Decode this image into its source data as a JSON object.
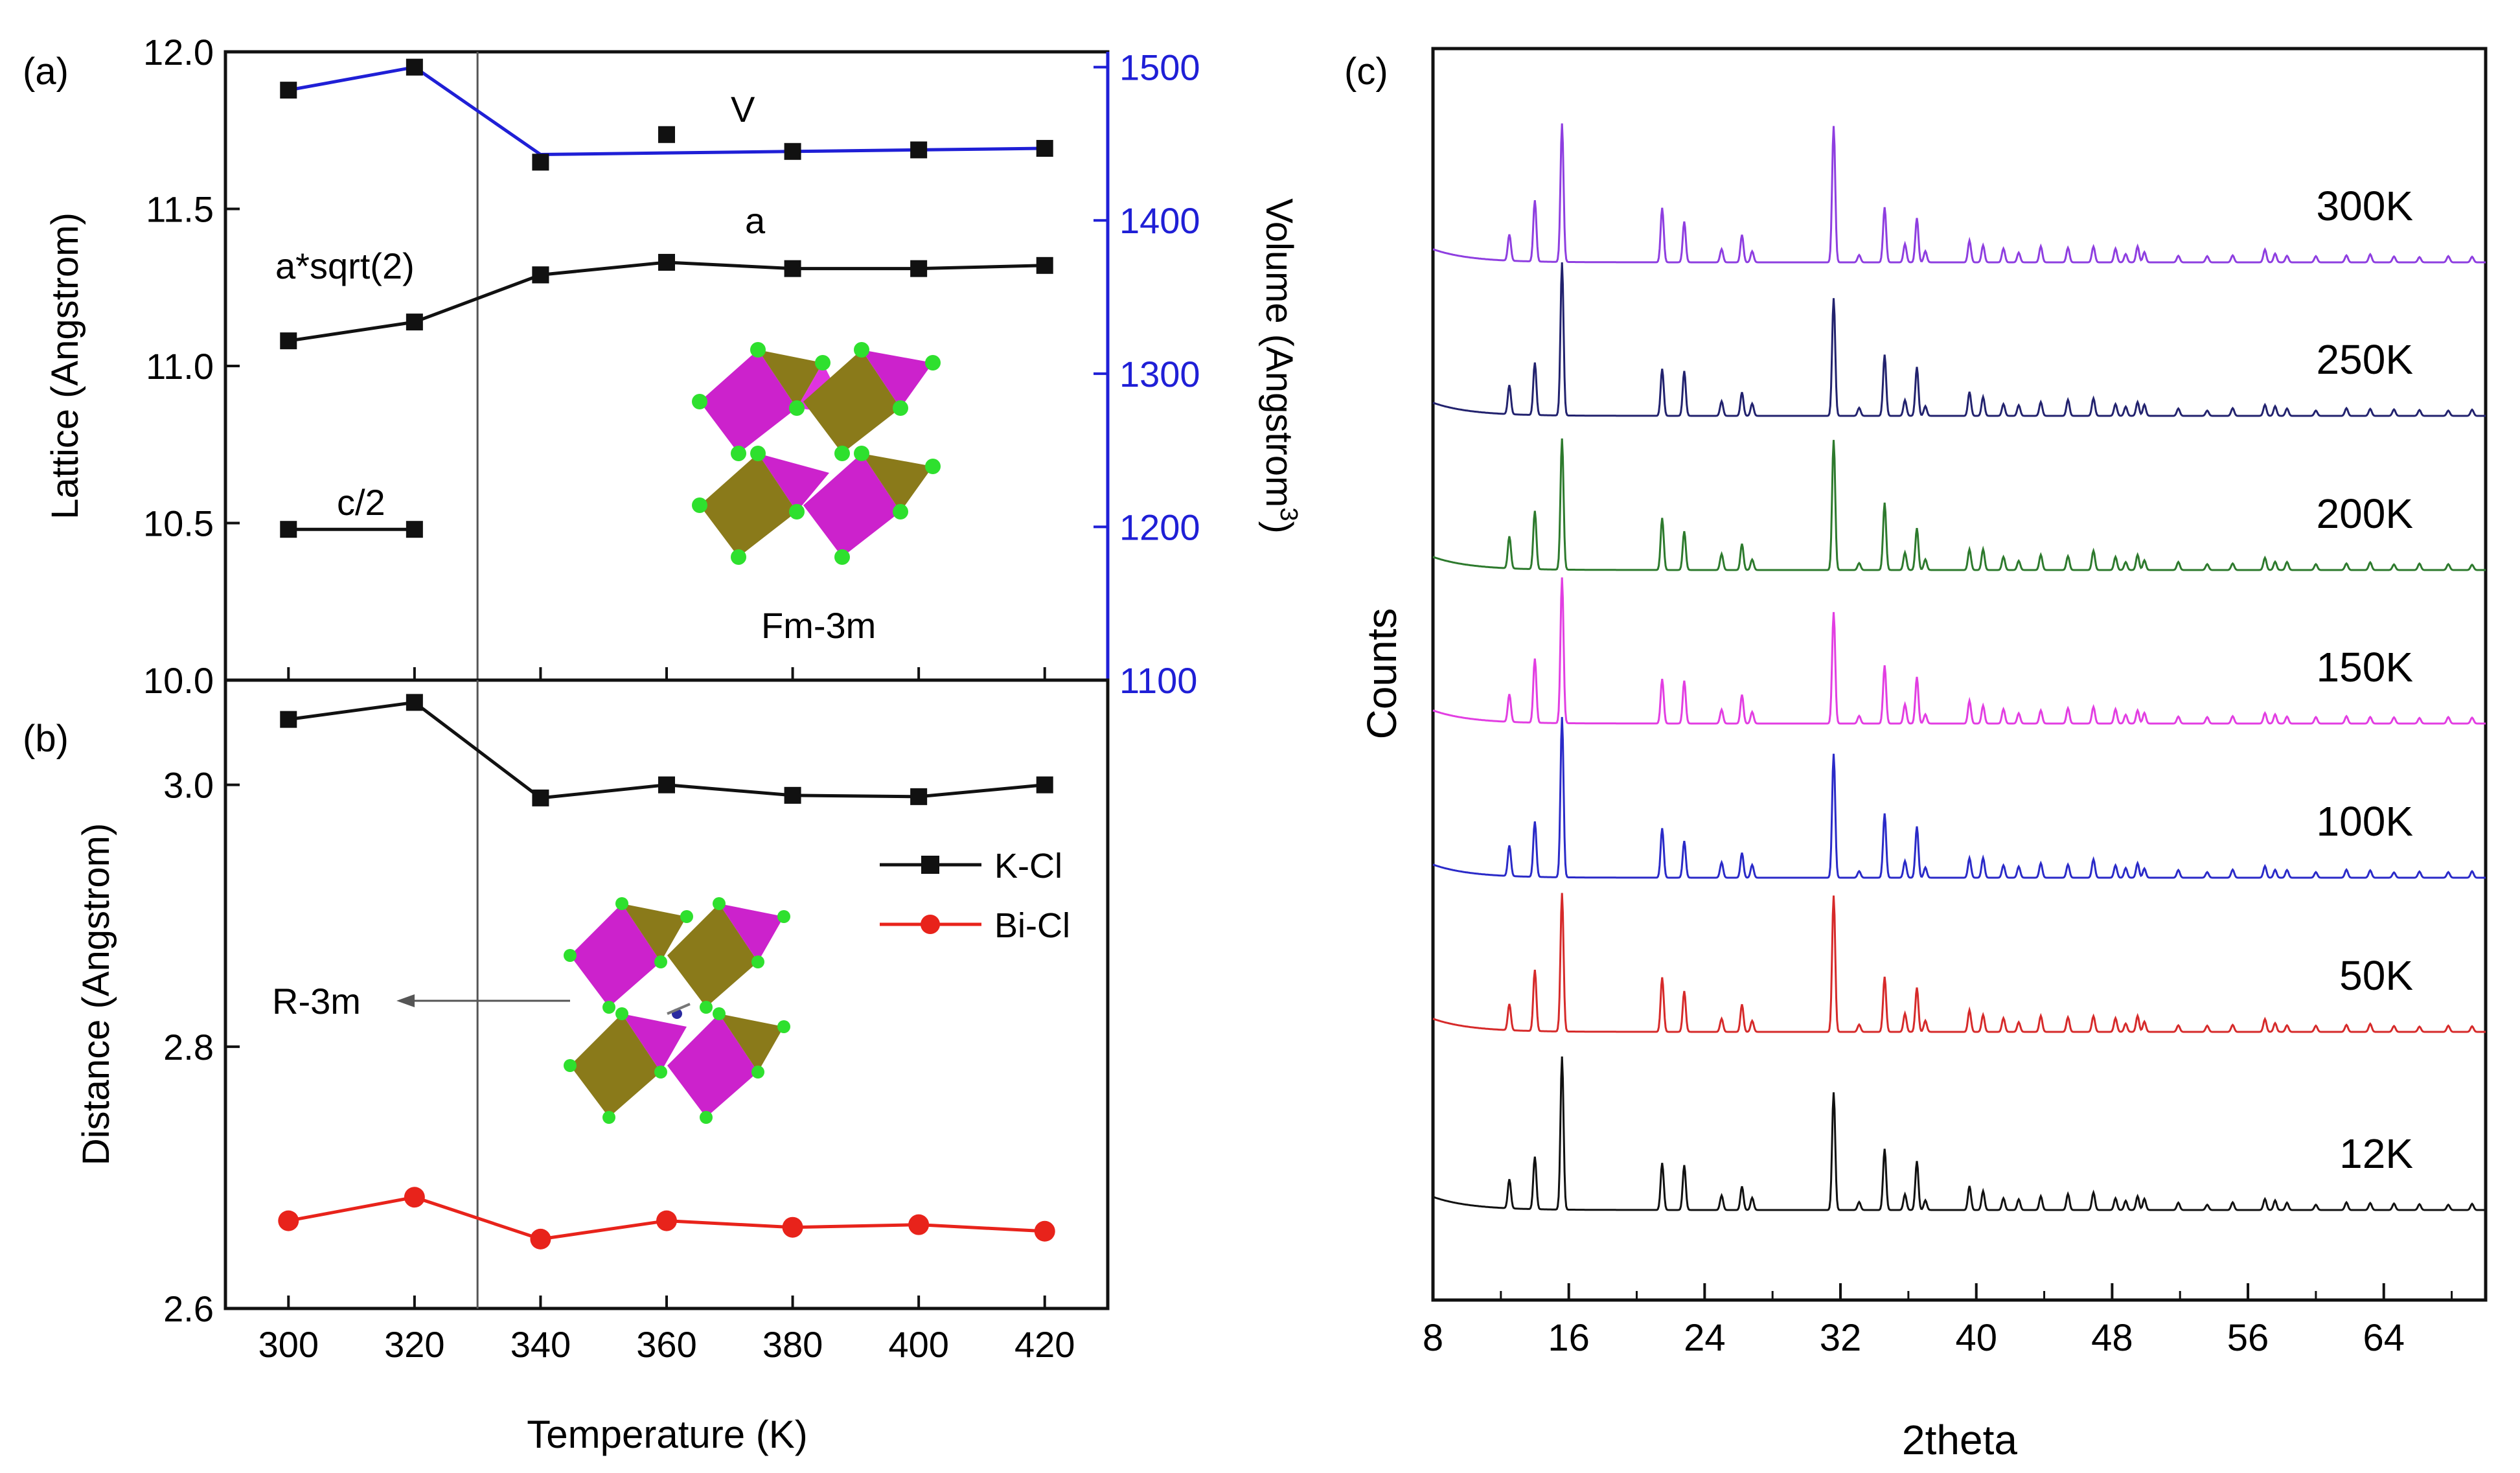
{
  "chart_data": [
    {
      "panel": "(a)",
      "type": "line",
      "xlabel": "",
      "ylabel": "Lattice (Angstrom)",
      "y2label": "Volume (Angstrom",
      "y2label_sup": "3",
      "y2label_end": ")",
      "xlim": [
        290,
        430
      ],
      "ylim": [
        10.0,
        12.0
      ],
      "y2lim": [
        1100,
        1510
      ],
      "x_ticks": [
        300,
        320,
        340,
        360,
        380,
        400,
        420
      ],
      "y_ticks": [
        "10.0",
        "10.5",
        "11.0",
        "11.5",
        "12.0"
      ],
      "y2_ticks": [
        "1100",
        "1200",
        "1300",
        "1400",
        "1500"
      ],
      "y2_color": "#1f1fd6",
      "transition_line_x": 330,
      "series": [
        {
          "name": "a*sqrt(2)",
          "axis": "left",
          "color": "#111111",
          "marker": "square",
          "x": [
            300,
            320,
            340
          ],
          "y": [
            11.08,
            11.14,
            11.29
          ],
          "connect": true
        },
        {
          "name": "a",
          "axis": "left",
          "color": "#111111",
          "marker": "square",
          "x": [
            340,
            360,
            380,
            400,
            420
          ],
          "y": [
            11.29,
            11.33,
            11.31,
            11.31,
            11.32
          ],
          "connect": true
        },
        {
          "name": "c/2",
          "axis": "left",
          "color": "#111111",
          "marker": "square",
          "x": [
            300,
            320
          ],
          "y": [
            10.48,
            10.48
          ],
          "connect": true
        },
        {
          "name": "V",
          "axis": "right",
          "color": "#1f1fd6",
          "marker": "square",
          "x": [
            300,
            320,
            340,
            360,
            380,
            400,
            420
          ],
          "y": [
            1485,
            1500,
            1438,
            1456,
            1445,
            1446,
            1447
          ],
          "line_x": [
            300,
            320,
            340,
            380,
            400,
            420
          ],
          "line_y": [
            1485,
            1500,
            1443,
            1445,
            1446,
            1447
          ],
          "marker_color": "#111111"
        }
      ],
      "annotations": {
        "a_sqrt2": "a*sqrt(2)",
        "a": "a",
        "c_half": "c/2",
        "v": "V",
        "phase": "Fm-3m"
      }
    },
    {
      "panel": "(b)",
      "type": "line",
      "xlabel": "Temperature (K)",
      "ylabel": "Distance (Angstrom)",
      "xlim": [
        290,
        430
      ],
      "ylim": [
        2.6,
        3.08
      ],
      "x_ticks": [
        "300",
        "320",
        "340",
        "360",
        "380",
        "400",
        "420"
      ],
      "y_ticks": [
        "2.6",
        "2.8",
        "3.0"
      ],
      "series": [
        {
          "name": "K-Cl",
          "color": "#111111",
          "marker": "square",
          "x": [
            300,
            320,
            340,
            360,
            380,
            400,
            420
          ],
          "y": [
            3.05,
            3.063,
            2.99,
            3.0,
            2.992,
            2.991,
            3.0
          ]
        },
        {
          "name": "Bi-Cl",
          "color": "#e8231b",
          "marker": "circle",
          "x": [
            300,
            320,
            340,
            360,
            380,
            400,
            420
          ],
          "y": [
            2.667,
            2.685,
            2.653,
            2.667,
            2.662,
            2.664,
            2.659
          ]
        }
      ],
      "legend": [
        "K-Cl",
        "Bi-Cl"
      ],
      "legend_position": "center-right",
      "annotations": {
        "phase": "R-3m"
      }
    },
    {
      "panel": "(c)",
      "type": "line",
      "xlabel": "2theta",
      "ylabel": "Counts",
      "xlim": [
        8,
        70
      ],
      "x_ticks": [
        "8",
        "16",
        "24",
        "32",
        "40",
        "48",
        "56",
        "64"
      ],
      "peaks_2theta": [
        12.5,
        14.0,
        15.6,
        21.5,
        22.8,
        25.0,
        26.2,
        26.8,
        31.6,
        33.1,
        34.6,
        35.8,
        36.5,
        37.0,
        39.6,
        40.4,
        41.6,
        42.5,
        43.8,
        45.4,
        46.9,
        48.2,
        48.8,
        49.5,
        49.9,
        51.9,
        53.6,
        55.1,
        57.0,
        57.6,
        58.3,
        60.0,
        61.8,
        63.2,
        64.6,
        66.1,
        67.8,
        69.2
      ],
      "peak_heights": [
        0.2,
        0.4,
        1.0,
        0.34,
        0.28,
        0.1,
        0.18,
        0.08,
        0.85,
        0.05,
        0.42,
        0.12,
        0.32,
        0.07,
        0.15,
        0.13,
        0.09,
        0.07,
        0.1,
        0.1,
        0.12,
        0.09,
        0.06,
        0.1,
        0.07,
        0.05,
        0.04,
        0.05,
        0.08,
        0.06,
        0.05,
        0.04,
        0.05,
        0.05,
        0.04,
        0.04,
        0.04,
        0.04
      ],
      "series": [
        {
          "name": "300K",
          "color": "#8e3ee0"
        },
        {
          "name": "250K",
          "color": "#22226e"
        },
        {
          "name": "200K",
          "color": "#2d7a2d"
        },
        {
          "name": "150K",
          "color": "#e23ee2"
        },
        {
          "name": "100K",
          "color": "#2a2ac8"
        },
        {
          "name": "50K",
          "color": "#d62a2a"
        },
        {
          "name": "12K",
          "color": "#111111"
        }
      ]
    }
  ]
}
